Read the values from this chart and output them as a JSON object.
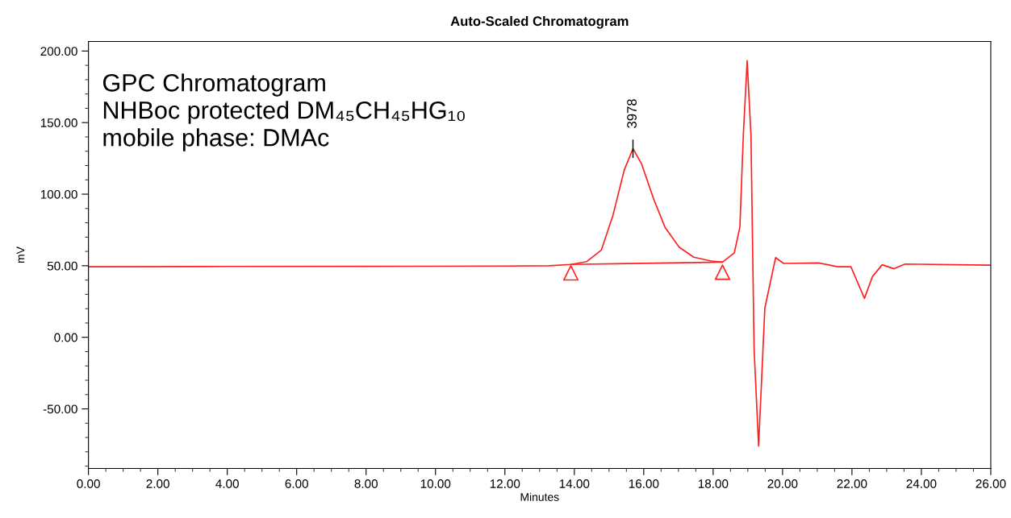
{
  "chart_data": {
    "type": "line",
    "title": "Auto-Scaled Chromatogram",
    "xlabel": "Minutes",
    "ylabel": "mV",
    "series": [
      {
        "color": "#ff2020",
        "x": [
          0,
          4,
          8,
          12,
          13.28,
          13.9,
          14.36,
          14.78,
          15.11,
          15.44,
          15.69,
          15.94,
          16.28,
          16.61,
          17.02,
          17.44,
          17.94,
          18.27,
          18.61,
          18.77,
          18.87,
          18.98,
          19.09,
          19.18,
          19.31,
          19.49,
          19.8,
          20.03,
          21.03,
          21.59,
          21.97,
          22.36,
          22.59,
          22.87,
          23.21,
          23.53,
          25.92,
          26
        ],
        "values": [
          49.3,
          49.5,
          49.6,
          49.8,
          50,
          50.9,
          52.9,
          61,
          85,
          117,
          131.8,
          121,
          97,
          77,
          63,
          56,
          53.3,
          52.5,
          59,
          77,
          141.5,
          193.3,
          141,
          -8,
          -76,
          20.5,
          55.7,
          51.6,
          52,
          49.3,
          49.3,
          27.2,
          42.4,
          50.7,
          47.9,
          51.2,
          50.4,
          50.4
        ]
      },
      {
        "color": "#ff2020",
        "x": [
          13.9,
          18.27
        ],
        "values": [
          50.9,
          52.5
        ]
      },
      {
        "type": "scatter",
        "marker": "triangle",
        "color": "#ff2020",
        "x": [
          13.9,
          18.27
        ],
        "values": [
          45,
          45.5
        ]
      }
    ],
    "xlim": [
      0,
      26
    ],
    "ylim": [
      -91.6,
      206.7
    ],
    "xticks": [
      {
        "value": 0,
        "label": "0.00"
      },
      {
        "value": 2,
        "label": "2.00"
      },
      {
        "value": 4,
        "label": "4.00"
      },
      {
        "value": 6,
        "label": "6.00"
      },
      {
        "value": 8,
        "label": "8.00"
      },
      {
        "value": 10,
        "label": "10.00"
      },
      {
        "value": 12,
        "label": "12.00"
      },
      {
        "value": 14,
        "label": "14.00"
      },
      {
        "value": 16,
        "label": "16.00"
      },
      {
        "value": 18,
        "label": "18.00"
      },
      {
        "value": 20,
        "label": "20.00"
      },
      {
        "value": 22,
        "label": "22.00"
      },
      {
        "value": 24,
        "label": "24.00"
      },
      {
        "value": 26,
        "label": "26.00"
      }
    ],
    "yticks": [
      {
        "value": -50,
        "label": "-50.00"
      },
      {
        "value": 0,
        "label": "0.00"
      },
      {
        "value": 50,
        "label": "50.00"
      },
      {
        "value": 100,
        "label": "100.00"
      },
      {
        "value": 150,
        "label": "150.00"
      },
      {
        "value": 200,
        "label": "200.00"
      }
    ],
    "annotations": [
      {
        "text": "3978",
        "x": 15.69,
        "y": 131.8
      },
      "GPC Chromatogram\nNHBoc protected DM₄₅CH₄₅HG₁₀\nmobile phase: DMAc"
    ],
    "grid": false,
    "legend": false,
    "marker": "none",
    "line_style": "solid"
  }
}
